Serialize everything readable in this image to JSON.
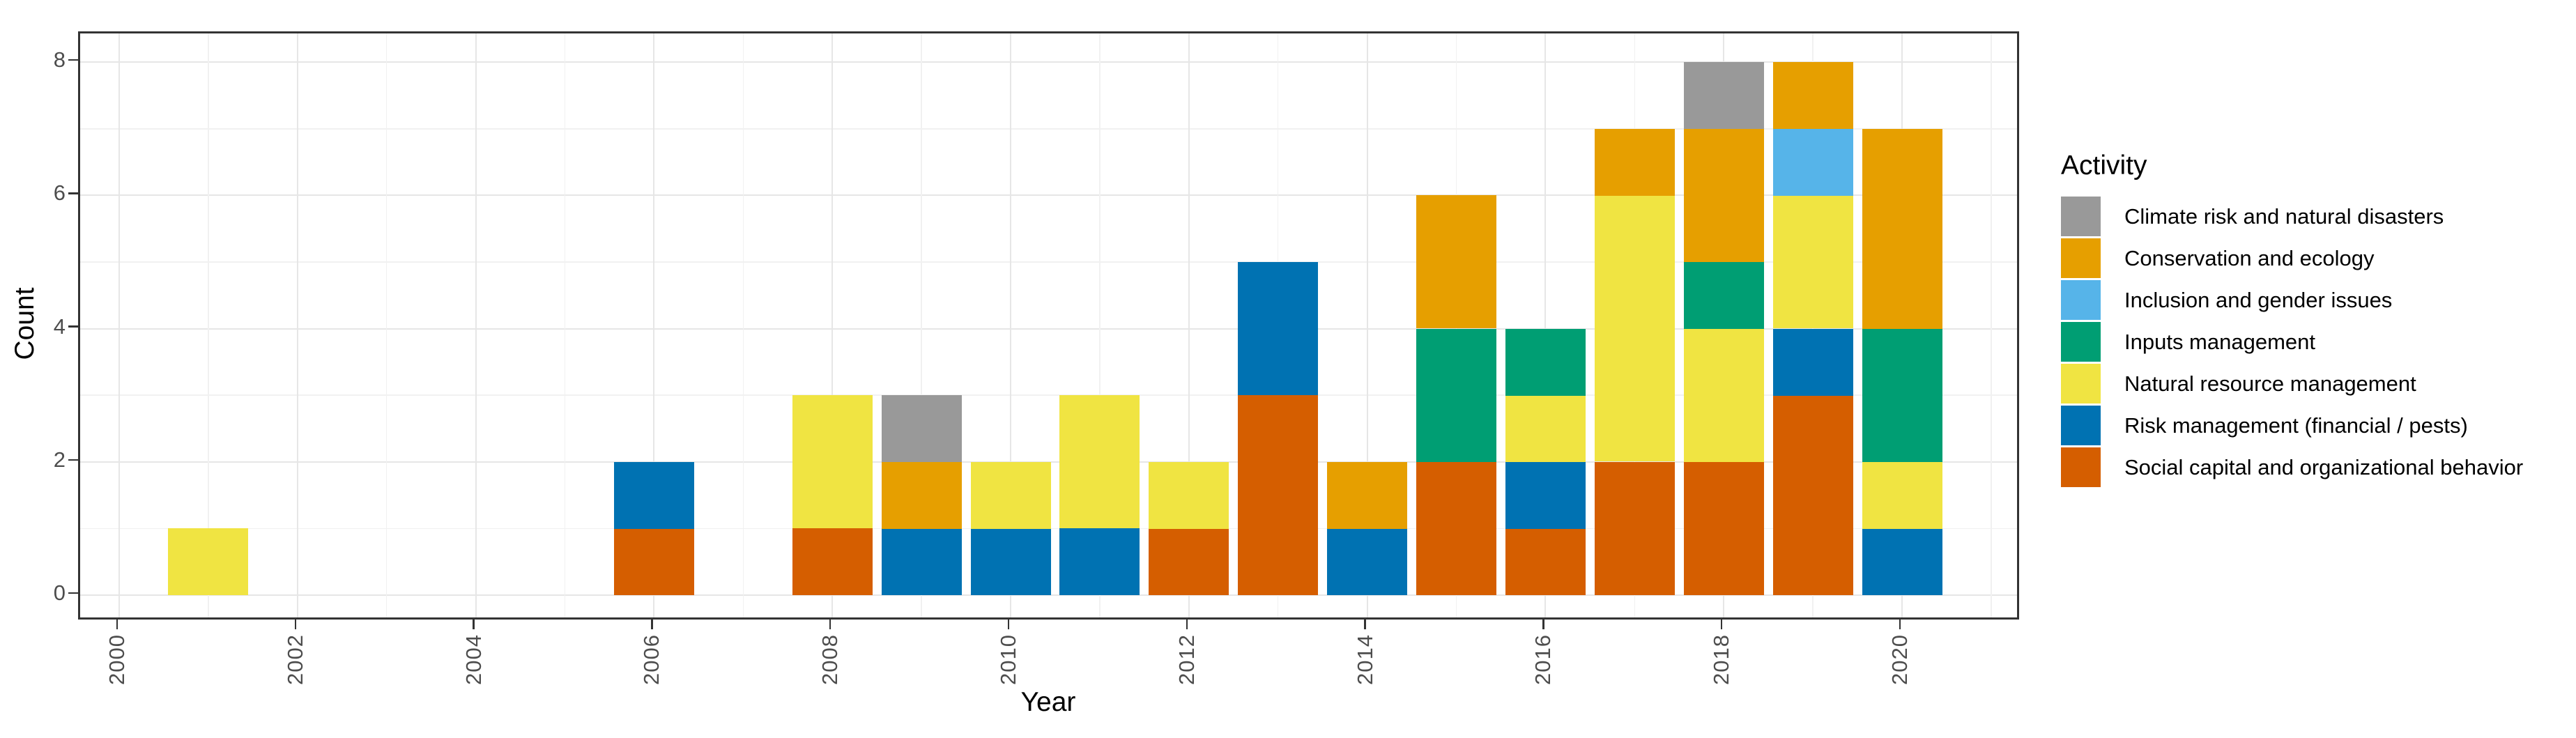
{
  "figure": {
    "background": "#FFFFFF",
    "panel_border_color": "#333333",
    "grid_major_color": "#E6E6E6",
    "grid_minor_color": "#F1F1F1",
    "axis_text_color": "#4D4D4D",
    "axis_title_color": "#000000",
    "tick_color": "#333333"
  },
  "axes": {
    "x_title": "Year",
    "y_title": "Count",
    "x_tick_labels": [
      "2000",
      "2002",
      "2004",
      "2006",
      "2008",
      "2010",
      "2012",
      "2014",
      "2016",
      "2018",
      "2020"
    ],
    "y_tick_labels": [
      "0",
      "2",
      "4",
      "6",
      "8"
    ]
  },
  "legend": {
    "title": "Activity"
  },
  "chart_data": {
    "type": "bar",
    "stacked": true,
    "title": "",
    "xlabel": "Year",
    "ylabel": "Count",
    "x": [
      2000,
      2001,
      2002,
      2003,
      2004,
      2005,
      2006,
      2007,
      2008,
      2009,
      2010,
      2011,
      2012,
      2013,
      2014,
      2015,
      2016,
      2017,
      2018,
      2019,
      2020
    ],
    "x_tick_step": 2,
    "ylim": [
      0,
      8
    ],
    "y_major_ticks": [
      0,
      2,
      4,
      6,
      8
    ],
    "y_minor_ticks": [
      1,
      3,
      5,
      7
    ],
    "bar_width_years": 0.9,
    "grid": true,
    "legend_position": "right",
    "series": [
      {
        "name": "Climate risk and natural disasters",
        "color": "#999999",
        "values": [
          0,
          0,
          0,
          0,
          0,
          0,
          0,
          0,
          0,
          1,
          0,
          0,
          0,
          0,
          0,
          0,
          0,
          0,
          1,
          0,
          0
        ]
      },
      {
        "name": "Conservation and ecology",
        "color": "#E69F00",
        "values": [
          0,
          0,
          0,
          0,
          0,
          0,
          0,
          0,
          0,
          1,
          0,
          0,
          0,
          0,
          1,
          2,
          0,
          1,
          2,
          1,
          3
        ]
      },
      {
        "name": "Inclusion and gender issues",
        "color": "#56B4E9",
        "values": [
          0,
          0,
          0,
          0,
          0,
          0,
          0,
          0,
          0,
          0,
          0,
          0,
          0,
          0,
          0,
          0,
          0,
          0,
          0,
          1,
          0
        ]
      },
      {
        "name": "Inputs management",
        "color": "#009E73",
        "values": [
          0,
          0,
          0,
          0,
          0,
          0,
          0,
          0,
          0,
          0,
          0,
          0,
          0,
          0,
          0,
          2,
          1,
          0,
          1,
          0,
          2
        ]
      },
      {
        "name": "Natural resource management",
        "color": "#F0E442",
        "values": [
          0,
          1,
          0,
          0,
          0,
          0,
          0,
          0,
          2,
          0,
          1,
          2,
          1,
          0,
          0,
          0,
          1,
          4,
          2,
          2,
          1
        ]
      },
      {
        "name": "Risk management (financial / pests)",
        "color": "#0072B2",
        "values": [
          0,
          0,
          0,
          0,
          0,
          0,
          1,
          0,
          0,
          1,
          1,
          1,
          0,
          2,
          1,
          0,
          1,
          0,
          0,
          1,
          1
        ]
      },
      {
        "name": "Social capital and organizational behavior",
        "color": "#D55E00",
        "values": [
          0,
          0,
          0,
          0,
          0,
          0,
          1,
          0,
          1,
          0,
          0,
          0,
          1,
          3,
          0,
          2,
          1,
          2,
          2,
          3,
          0
        ]
      }
    ],
    "stack_order_bottom_to_top": [
      "Social capital and organizational behavior",
      "Risk management (financial / pests)",
      "Natural resource management",
      "Inputs management",
      "Inclusion and gender issues",
      "Conservation and ecology",
      "Climate risk and natural disasters"
    ]
  }
}
